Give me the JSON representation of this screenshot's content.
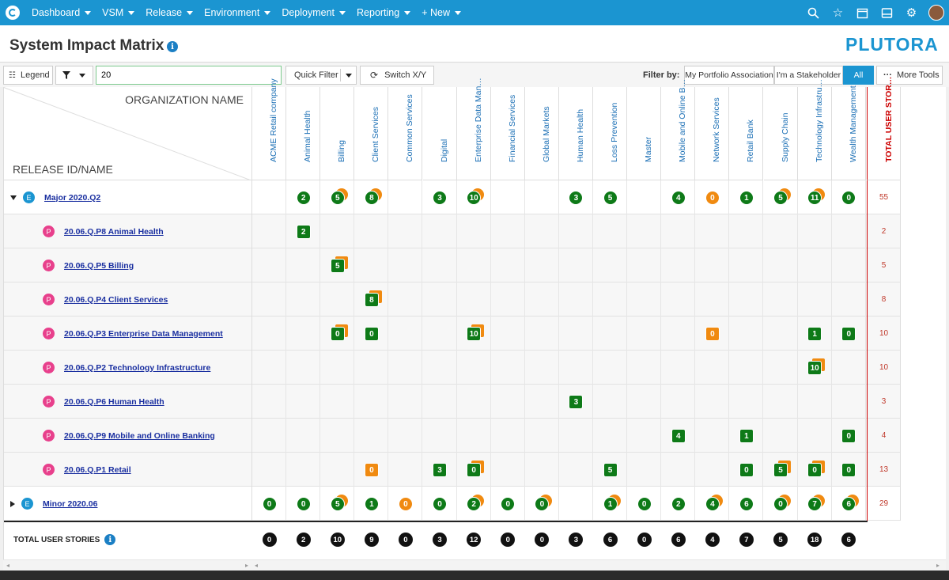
{
  "nav": {
    "items": [
      "Dashboard",
      "VSM",
      "Release",
      "Environment",
      "Deployment",
      "Reporting"
    ],
    "new_label": "+ New",
    "icons": [
      "search-icon",
      "star-icon",
      "calendar-icon",
      "inbox-icon",
      "gear-icon"
    ]
  },
  "page": {
    "title": "System Impact Matrix",
    "brand": "PLUTORA"
  },
  "toolbar": {
    "legend_label": "Legend",
    "search_value": "20",
    "quick_filter_label": "Quick Filter",
    "switch_label": "Switch X/Y",
    "filter_by_label": "Filter by:",
    "filter_options": [
      "My Portfolio Association",
      "I'm a Stakeholder",
      "All"
    ],
    "filter_active": "All",
    "more_tools_label": "More Tools"
  },
  "matrix": {
    "org_header": "ORGANIZATION NAME",
    "release_header": "RELEASE ID/NAME",
    "total_header": "TOTAL USER STORIES",
    "columns": [
      "ACME Retail company",
      "Animal Health",
      "Billing",
      "Client Services",
      "Common Services",
      "Digital",
      "Enterprise Data Management",
      "Financial Services",
      "Global Markets",
      "Human Health",
      "Loss Prevention",
      "Master",
      "Mobile and Online Banking",
      "Network Services",
      "Retail Bank",
      "Supply Chain",
      "Technology Infrastructure",
      "Wealth Management"
    ],
    "rows": [
      {
        "type": "epic",
        "expanded": true,
        "badge": "E",
        "name": "Major 2020.Q2",
        "total": "55",
        "cells": [
          null,
          {
            "v": "2",
            "s": "c",
            "c": "g"
          },
          {
            "v": "5",
            "s": "c",
            "c": "g",
            "st": true
          },
          {
            "v": "8",
            "s": "c",
            "c": "g",
            "st": true
          },
          null,
          {
            "v": "3",
            "s": "c",
            "c": "g"
          },
          {
            "v": "10",
            "s": "c",
            "c": "g",
            "st": true
          },
          null,
          null,
          {
            "v": "3",
            "s": "c",
            "c": "g"
          },
          {
            "v": "5",
            "s": "c",
            "c": "g"
          },
          null,
          {
            "v": "4",
            "s": "c",
            "c": "g"
          },
          {
            "v": "0",
            "s": "c",
            "c": "o"
          },
          {
            "v": "1",
            "s": "c",
            "c": "g"
          },
          {
            "v": "5",
            "s": "c",
            "c": "g",
            "st": true
          },
          {
            "v": "11",
            "s": "c",
            "c": "g",
            "st": true
          },
          {
            "v": "0",
            "s": "c",
            "c": "g"
          }
        ]
      },
      {
        "type": "sub",
        "badge": "P",
        "name": "20.06.Q.P8 Animal Health",
        "total": "2",
        "cells": [
          null,
          {
            "v": "2",
            "s": "s",
            "c": "g"
          },
          null,
          null,
          null,
          null,
          null,
          null,
          null,
          null,
          null,
          null,
          null,
          null,
          null,
          null,
          null,
          null
        ]
      },
      {
        "type": "sub",
        "badge": "P",
        "name": "20.06.Q.P5 Billing",
        "total": "5",
        "cells": [
          null,
          null,
          {
            "v": "5",
            "s": "s",
            "c": "g",
            "st": true
          },
          null,
          null,
          null,
          null,
          null,
          null,
          null,
          null,
          null,
          null,
          null,
          null,
          null,
          null,
          null
        ]
      },
      {
        "type": "sub",
        "badge": "P",
        "name": "20.06.Q.P4 Client Services",
        "total": "8",
        "cells": [
          null,
          null,
          null,
          {
            "v": "8",
            "s": "s",
            "c": "g",
            "st": true
          },
          null,
          null,
          null,
          null,
          null,
          null,
          null,
          null,
          null,
          null,
          null,
          null,
          null,
          null
        ]
      },
      {
        "type": "sub",
        "badge": "P",
        "name": "20.06.Q.P3 Enterprise Data Management",
        "total": "10",
        "cells": [
          null,
          null,
          {
            "v": "0",
            "s": "s",
            "c": "g",
            "st": true
          },
          {
            "v": "0",
            "s": "s",
            "c": "g"
          },
          null,
          null,
          {
            "v": "10",
            "s": "s",
            "c": "g",
            "st": true
          },
          null,
          null,
          null,
          null,
          null,
          null,
          {
            "v": "0",
            "s": "s",
            "c": "o"
          },
          null,
          null,
          {
            "v": "1",
            "s": "s",
            "c": "g"
          },
          {
            "v": "0",
            "s": "s",
            "c": "g"
          }
        ]
      },
      {
        "type": "sub",
        "badge": "P",
        "name": "20.06.Q.P2 Technology Infrastructure",
        "total": "10",
        "cells": [
          null,
          null,
          null,
          null,
          null,
          null,
          null,
          null,
          null,
          null,
          null,
          null,
          null,
          null,
          null,
          null,
          {
            "v": "10",
            "s": "s",
            "c": "g",
            "st": true
          },
          null
        ]
      },
      {
        "type": "sub",
        "badge": "P",
        "name": "20.06.Q.P6 Human Health",
        "total": "3",
        "cells": [
          null,
          null,
          null,
          null,
          null,
          null,
          null,
          null,
          null,
          {
            "v": "3",
            "s": "s",
            "c": "g"
          },
          null,
          null,
          null,
          null,
          null,
          null,
          null,
          null
        ]
      },
      {
        "type": "sub",
        "badge": "P",
        "name": "20.06.Q.P9 Mobile and Online Banking",
        "total": "4",
        "cells": [
          null,
          null,
          null,
          null,
          null,
          null,
          null,
          null,
          null,
          null,
          null,
          null,
          {
            "v": "4",
            "s": "s",
            "c": "g"
          },
          null,
          {
            "v": "1",
            "s": "s",
            "c": "g"
          },
          null,
          null,
          {
            "v": "0",
            "s": "s",
            "c": "g"
          }
        ]
      },
      {
        "type": "sub",
        "badge": "P",
        "name": "20.06.Q.P1 Retail",
        "total": "13",
        "cells": [
          null,
          null,
          null,
          {
            "v": "0",
            "s": "s",
            "c": "o"
          },
          null,
          {
            "v": "3",
            "s": "s",
            "c": "g"
          },
          {
            "v": "0",
            "s": "s",
            "c": "g",
            "st": true
          },
          null,
          null,
          null,
          {
            "v": "5",
            "s": "s",
            "c": "g"
          },
          null,
          null,
          null,
          {
            "v": "0",
            "s": "s",
            "c": "g"
          },
          {
            "v": "5",
            "s": "s",
            "c": "g",
            "st": true
          },
          {
            "v": "0",
            "s": "s",
            "c": "g",
            "st": true
          },
          {
            "v": "0",
            "s": "s",
            "c": "g"
          }
        ]
      },
      {
        "type": "epic",
        "expanded": false,
        "badge": "E",
        "name": "Minor 2020.06",
        "total": "29",
        "cells": [
          {
            "v": "0",
            "s": "c",
            "c": "g"
          },
          {
            "v": "0",
            "s": "c",
            "c": "g"
          },
          {
            "v": "5",
            "s": "c",
            "c": "g",
            "st": true
          },
          {
            "v": "1",
            "s": "c",
            "c": "g"
          },
          {
            "v": "0",
            "s": "c",
            "c": "o"
          },
          {
            "v": "0",
            "s": "c",
            "c": "g"
          },
          {
            "v": "2",
            "s": "c",
            "c": "g",
            "st": true
          },
          {
            "v": "0",
            "s": "c",
            "c": "g"
          },
          {
            "v": "0",
            "s": "c",
            "c": "g",
            "st": true
          },
          null,
          {
            "v": "1",
            "s": "c",
            "c": "g",
            "st": true
          },
          {
            "v": "0",
            "s": "c",
            "c": "g"
          },
          {
            "v": "2",
            "s": "c",
            "c": "g"
          },
          {
            "v": "4",
            "s": "c",
            "c": "g",
            "st": true
          },
          {
            "v": "6",
            "s": "c",
            "c": "g"
          },
          {
            "v": "0",
            "s": "c",
            "c": "g",
            "st": true
          },
          {
            "v": "7",
            "s": "c",
            "c": "g",
            "st": true
          },
          {
            "v": "6",
            "s": "c",
            "c": "g",
            "st": true
          }
        ]
      }
    ],
    "totals_label": "TOTAL USER STORIES",
    "totals": [
      "0",
      "2",
      "10",
      "9",
      "0",
      "3",
      "12",
      "0",
      "0",
      "3",
      "6",
      "0",
      "6",
      "4",
      "7",
      "5",
      "18",
      "6"
    ]
  },
  "colors": {
    "nav": "#1b95d1",
    "green": "#0e7a18",
    "orange": "#f08a10",
    "epic_badge": "#1b95d1",
    "project_badge": "#e8408c",
    "total_red": "#c00000"
  }
}
